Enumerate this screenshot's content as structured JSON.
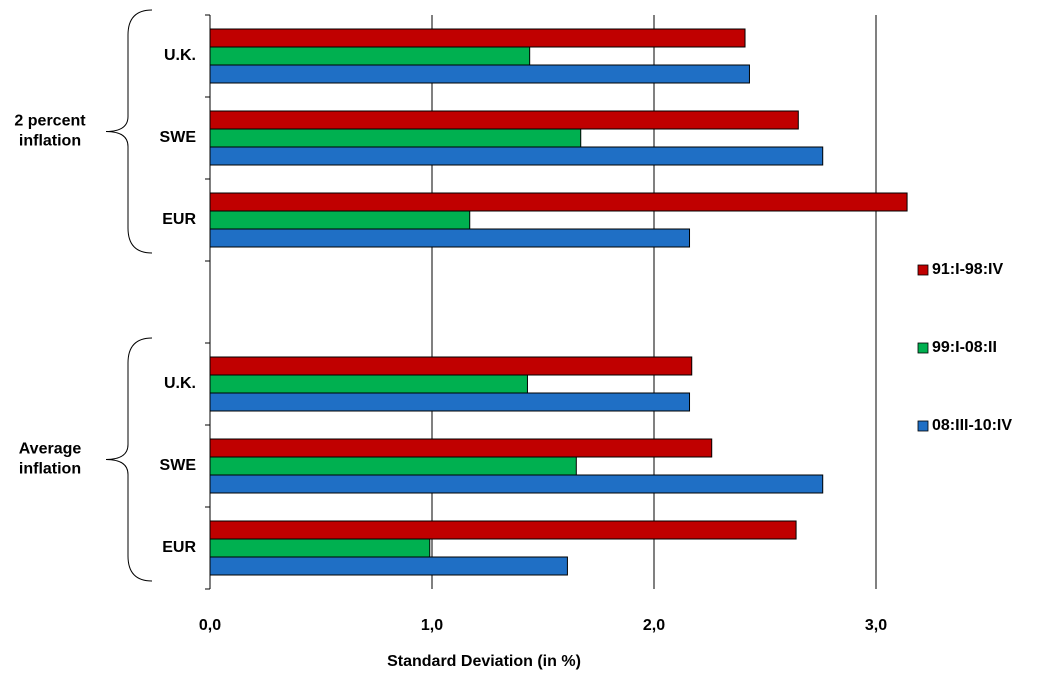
{
  "chart_data": {
    "type": "hbar",
    "xlabel": "Standard Deviation (in %)",
    "categories": [
      "U.K.",
      "SWE",
      "EUR",
      null,
      "U.K.",
      "SWE",
      "EUR"
    ],
    "groups": [
      {
        "label": [
          "2 percent",
          "inflation"
        ],
        "categories": [
          "U.K.",
          "SWE",
          "EUR"
        ]
      },
      {
        "label": [
          "Average",
          "inflation"
        ],
        "categories": [
          "U.K.",
          "SWE",
          "EUR"
        ]
      }
    ],
    "series": [
      {
        "name": "91:I-98:IV",
        "color": "#c00000",
        "values": [
          2.41,
          2.65,
          3.14,
          null,
          2.17,
          2.26,
          2.64
        ]
      },
      {
        "name": "99:I-08:II",
        "color": "#00b050",
        "values": [
          1.44,
          1.67,
          1.17,
          null,
          1.43,
          1.65,
          0.99
        ]
      },
      {
        "name": "08:III-10:IV",
        "color": "#1f6fc5",
        "values": [
          2.43,
          2.76,
          2.16,
          null,
          2.16,
          2.76,
          1.61
        ]
      }
    ],
    "xlim": [
      0,
      3.5
    ],
    "xticks": [
      {
        "value": 0,
        "label": "0,0"
      },
      {
        "value": 1,
        "label": "1,0"
      },
      {
        "value": 2,
        "label": "2,0"
      },
      {
        "value": 3,
        "label": "3,0"
      }
    ],
    "grid": true
  }
}
